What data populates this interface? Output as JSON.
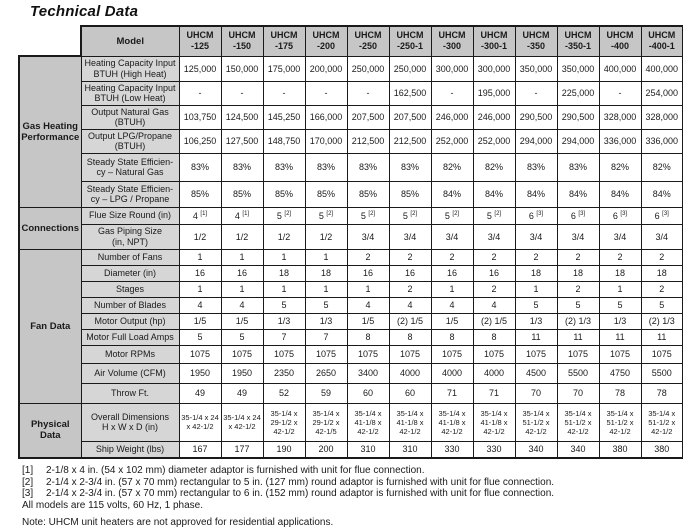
{
  "page": {
    "title": "Technical Data",
    "colors": {
      "header_bg": "#c6c6c6",
      "label_bg": "#d6d6d6",
      "border": "#1a1a1a",
      "text": "#1a1a1a"
    }
  },
  "table": {
    "model_header": "Model",
    "columns": [
      "UHCM\n-125",
      "UHCM\n-150",
      "UHCM\n-175",
      "UHCM\n-200",
      "UHCM\n-250",
      "UHCM\n-250-1",
      "UHCM\n-300",
      "UHCM\n-300-1",
      "UHCM\n-350",
      "UHCM\n-350-1",
      "UHCM\n-400",
      "UHCM\n-400-1"
    ],
    "groups": [
      {
        "label": "Gas Heating\nPerformance",
        "rows": [
          {
            "label": "Heating Capacity Input\nBTUH (High Heat)",
            "values": [
              "125,000",
              "150,000",
              "175,000",
              "200,000",
              "250,000",
              "250,000",
              "300,000",
              "300,000",
              "350,000",
              "350,000",
              "400,000",
              "400,000"
            ]
          },
          {
            "label": "Heating Capacity Input\nBTUH (Low Heat)",
            "values": [
              "-",
              "-",
              "-",
              "-",
              "-",
              "162,500",
              "-",
              "195,000",
              "-",
              "225,000",
              "-",
              "254,000"
            ]
          },
          {
            "label": "Output Natural Gas\n(BTUH)",
            "values": [
              "103,750",
              "124,500",
              "145,250",
              "166,000",
              "207,500",
              "207,500",
              "246,000",
              "246,000",
              "290,500",
              "290,500",
              "328,000",
              "328,000"
            ]
          },
          {
            "label": "Output LPG/Propane\n(BTUH)",
            "values": [
              "106,250",
              "127,500",
              "148,750",
              "170,000",
              "212,500",
              "212,500",
              "252,000",
              "252,000",
              "294,000",
              "294,000",
              "336,000",
              "336,000"
            ]
          },
          {
            "label": "Steady State Efficien-\ncy – Natural Gas",
            "values": [
              "83%",
              "83%",
              "83%",
              "83%",
              "83%",
              "83%",
              "82%",
              "82%",
              "83%",
              "83%",
              "82%",
              "82%"
            ]
          },
          {
            "label": "Steady State Efficien-\ncy – LPG / Propane",
            "values": [
              "85%",
              "85%",
              "85%",
              "85%",
              "85%",
              "85%",
              "84%",
              "84%",
              "84%",
              "84%",
              "84%",
              "84%"
            ]
          }
        ]
      },
      {
        "label": "Connections",
        "rows": [
          {
            "label": "Flue Size Round (in)",
            "values": [
              "4 [1]",
              "4 [1]",
              "5 [2]",
              "5 [2]",
              "5 [2]",
              "5 [2]",
              "5 [2]",
              "5 [2]",
              "6 [3]",
              "6 [3]",
              "6 [3]",
              "6 [3]"
            ]
          },
          {
            "label": "Gas Piping Size\n(in, NPT)",
            "values": [
              "1/2",
              "1/2",
              "1/2",
              "1/2",
              "3/4",
              "3/4",
              "3/4",
              "3/4",
              "3/4",
              "3/4",
              "3/4",
              "3/4"
            ]
          }
        ]
      },
      {
        "label": "Fan Data",
        "rows": [
          {
            "label": "Number of Fans",
            "values": [
              "1",
              "1",
              "1",
              "1",
              "2",
              "2",
              "2",
              "2",
              "2",
              "2",
              "2",
              "2"
            ]
          },
          {
            "label": "Diameter (in)",
            "values": [
              "16",
              "16",
              "18",
              "18",
              "16",
              "16",
              "16",
              "16",
              "18",
              "18",
              "18",
              "18"
            ]
          },
          {
            "label": "Stages",
            "values": [
              "1",
              "1",
              "1",
              "1",
              "1",
              "2",
              "1",
              "2",
              "1",
              "2",
              "1",
              "2"
            ]
          },
          {
            "label": "Number of Blades",
            "values": [
              "4",
              "4",
              "5",
              "5",
              "4",
              "4",
              "4",
              "4",
              "5",
              "5",
              "5",
              "5"
            ]
          },
          {
            "label": "Motor Output (hp)",
            "values": [
              "1/5",
              "1/5",
              "1/3",
              "1/3",
              "1/5",
              "(2) 1/5",
              "1/5",
              "(2) 1/5",
              "1/3",
              "(2) 1/3",
              "1/3",
              "(2) 1/3"
            ]
          },
          {
            "label": "Motor Full Load Amps",
            "values": [
              "5",
              "5",
              "7",
              "7",
              "8",
              "8",
              "8",
              "8",
              "11",
              "11",
              "11",
              "11"
            ]
          },
          {
            "label": "Motor RPMs",
            "values": [
              "1075",
              "1075",
              "1075",
              "1075",
              "1075",
              "1075",
              "1075",
              "1075",
              "1075",
              "1075",
              "1075",
              "1075"
            ]
          },
          {
            "label": "Air Volume (CFM)",
            "values": [
              "1950",
              "1950",
              "2350",
              "2650",
              "3400",
              "4000",
              "4000",
              "4000",
              "4500",
              "5500",
              "4750",
              "5500"
            ]
          },
          {
            "label": "Throw Ft.",
            "values": [
              "49",
              "49",
              "52",
              "59",
              "60",
              "60",
              "71",
              "71",
              "70",
              "70",
              "78",
              "78"
            ]
          }
        ]
      },
      {
        "label": "Physical\nData",
        "rows": [
          {
            "label": "Overall Dimensions\nH x W x D (in)",
            "values": [
              "35-1/4 x 24 x 42-1/2",
              "35-1/4 x 24 x 42-1/2",
              "35-1/4 x 29-1/2 x 42-1/2",
              "35-1/4 x 29-1/2 x 42-1/5",
              "35-1/4 x 41-1/8 x 42-1/2",
              "35-1/4 x 41-1/8 x 42-1/2",
              "35-1/4 x 41-1/8 x 42-1/2",
              "35-1/4 x 41-1/8 x 42-1/2",
              "35-1/4 x 51-1/2 x 42-1/2",
              "35-1/4 x 51-1/2 x 42-1/2",
              "35-1/4 x 51-1/2 x 42-1/2",
              "35-1/4 x 51-1/2 x 42-1/2"
            ]
          },
          {
            "label": "Ship Weight (lbs)",
            "values": [
              "167",
              "177",
              "190",
              "200",
              "310",
              "310",
              "330",
              "330",
              "340",
              "340",
              "380",
              "380"
            ]
          }
        ]
      }
    ]
  },
  "footnotes": [
    {
      "marker": "[1]",
      "text": "2-1/8 x 4 in. (54 x 102 mm) diameter adaptor is furnished with unit for flue connection."
    },
    {
      "marker": "[2]",
      "text": "2-1/4 x 2-3/4 in. (57 x 70 mm) rectangular to 5 in. (127 mm) round adaptor is furnished with unit for flue connection."
    },
    {
      "marker": "[3]",
      "text": "2-1/4 x 2-3/4 in. (57 x 70 mm) rectangular to 6 in. (152 mm) round adaptor is furnished with unit for flue connection."
    }
  ],
  "notes": [
    "All models are 115 volts, 60 Hz, 1 phase.",
    "Note:  UHCM unit heaters are not approved for residential applications."
  ]
}
